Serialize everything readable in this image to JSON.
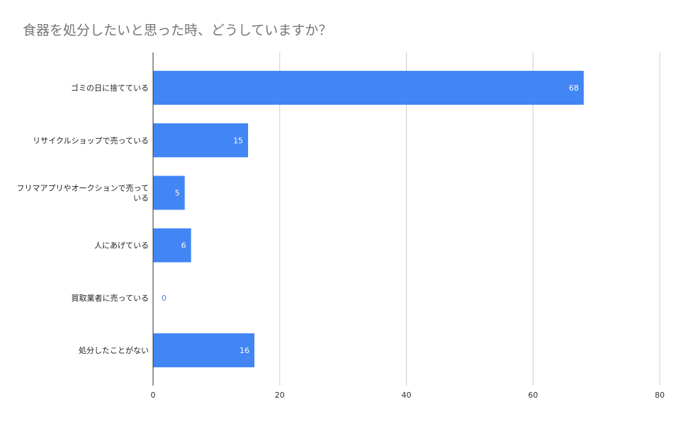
{
  "chart_data": {
    "type": "bar",
    "orientation": "horizontal",
    "title": "食器を処分したいと思った時、どうしていますか？",
    "xlabel": "",
    "ylabel": "",
    "categories": [
      [
        "ゴミの日に捨てている"
      ],
      [
        "リサイクルショップで売っている"
      ],
      [
        "フリマアプリやオークションで売って",
        "いる"
      ],
      [
        "人にあげている"
      ],
      [
        "買取業者に売っている"
      ],
      [
        "処分したことがない"
      ]
    ],
    "values": [
      68,
      15,
      5,
      6,
      0,
      16
    ],
    "xlim": [
      0,
      80
    ],
    "ticks": [
      0,
      20,
      40,
      60,
      80
    ],
    "grid": true,
    "legend": "none",
    "data_labels": true,
    "colors": {
      "bar": "#4285f4",
      "label_inside": "#ffffff",
      "label_outside": "#4285f4",
      "grid": "#cccccc",
      "axis": "#333333"
    }
  }
}
